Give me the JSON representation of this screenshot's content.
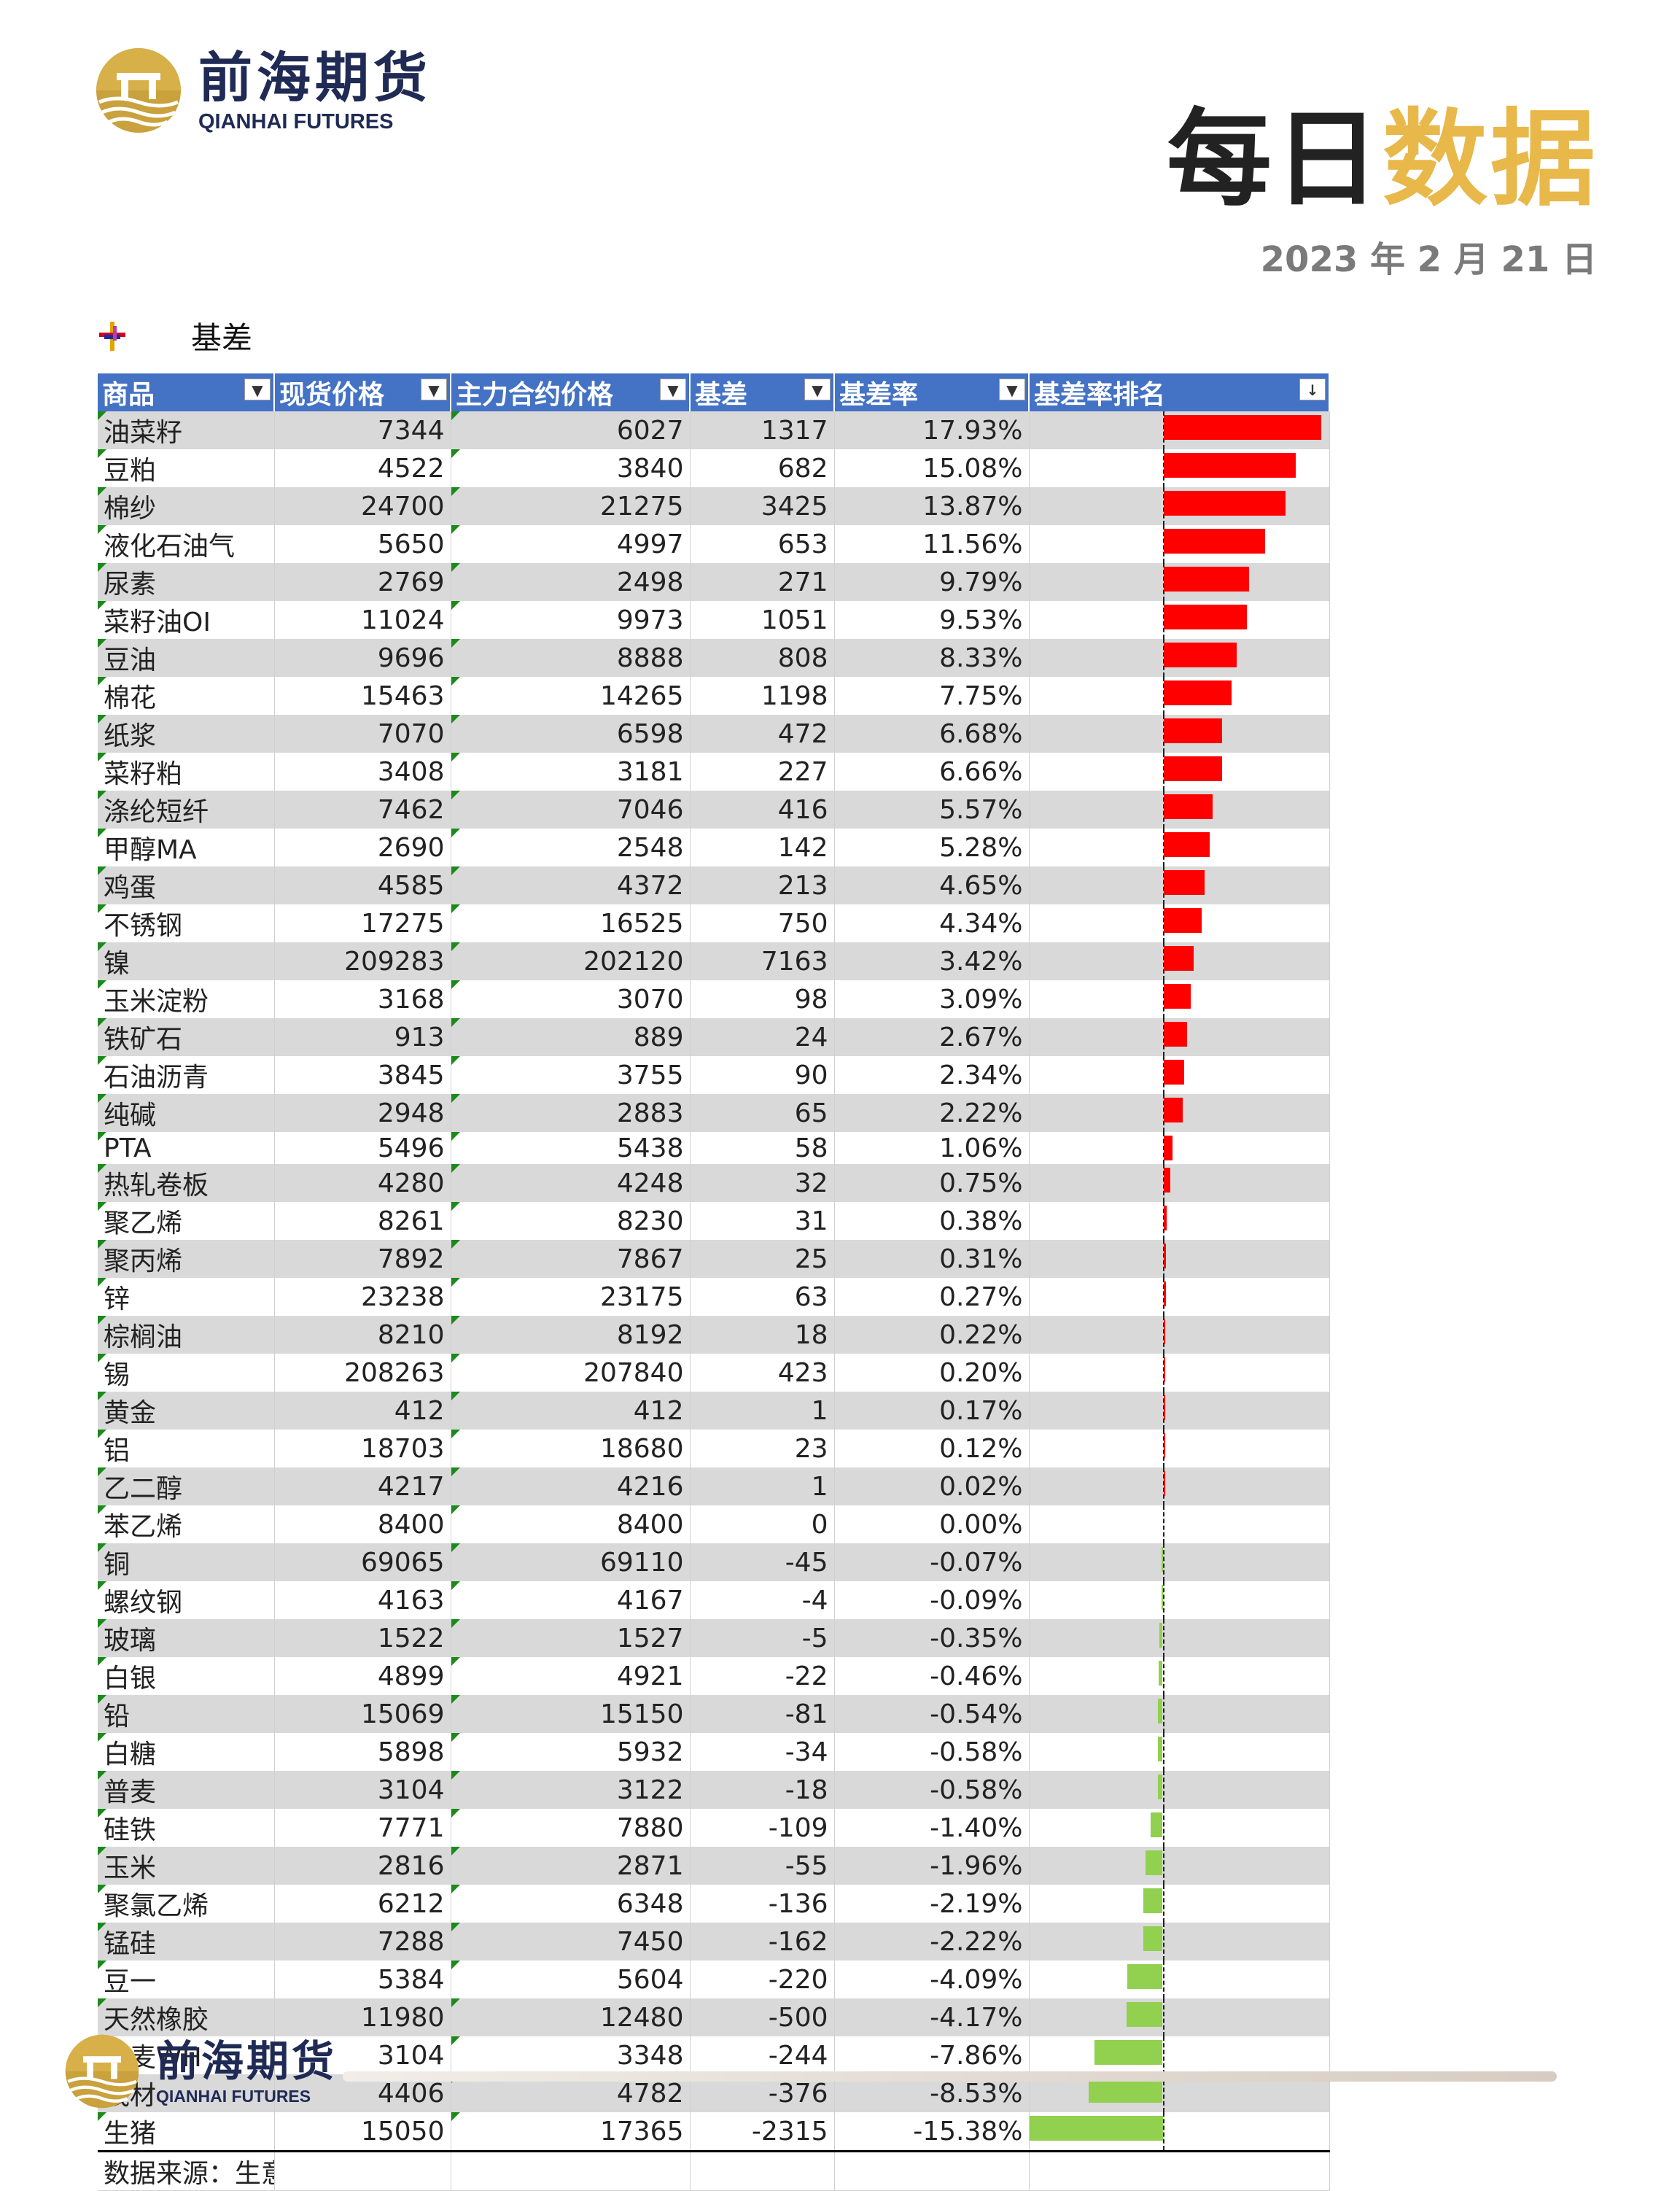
{
  "header": {
    "logo_cn": "前海期货",
    "logo_en": "QIANHAI FUTURES",
    "title_part1": "每日",
    "title_part2": "数据",
    "date": "2023 年 2 月 21 日"
  },
  "section": {
    "title": "基差"
  },
  "table": {
    "columns": [
      "商品",
      "现货价格",
      "主力合约价格",
      "基差",
      "基差率",
      "基差率排名"
    ],
    "rows": [
      [
        "油菜籽",
        "7344",
        "6027",
        "1317",
        "17.93%"
      ],
      [
        "豆粕",
        "4522",
        "3840",
        "682",
        "15.08%"
      ],
      [
        "棉纱",
        "24700",
        "21275",
        "3425",
        "13.87%"
      ],
      [
        "液化石油气",
        "5650",
        "4997",
        "653",
        "11.56%"
      ],
      [
        "尿素",
        "2769",
        "2498",
        "271",
        "9.79%"
      ],
      [
        "菜籽油OI",
        "11024",
        "9973",
        "1051",
        "9.53%"
      ],
      [
        "豆油",
        "9696",
        "8888",
        "808",
        "8.33%"
      ],
      [
        "棉花",
        "15463",
        "14265",
        "1198",
        "7.75%"
      ],
      [
        "纸浆",
        "7070",
        "6598",
        "472",
        "6.68%"
      ],
      [
        "菜籽粕",
        "3408",
        "3181",
        "227",
        "6.66%"
      ],
      [
        "涤纶短纤",
        "7462",
        "7046",
        "416",
        "5.57%"
      ],
      [
        "甲醇MA",
        "2690",
        "2548",
        "142",
        "5.28%"
      ],
      [
        "鸡蛋",
        "4585",
        "4372",
        "213",
        "4.65%"
      ],
      [
        "不锈钢",
        "17275",
        "16525",
        "750",
        "4.34%"
      ],
      [
        "镍",
        "209283",
        "202120",
        "7163",
        "3.42%"
      ],
      [
        "玉米淀粉",
        "3168",
        "3070",
        "98",
        "3.09%"
      ],
      [
        "铁矿石",
        "913",
        "889",
        "24",
        "2.67%"
      ],
      [
        "石油沥青",
        "3845",
        "3755",
        "90",
        "2.34%"
      ],
      [
        "纯碱",
        "2948",
        "2883",
        "65",
        "2.22%"
      ],
      [
        "PTA",
        "5496",
        "5438",
        "58",
        "1.06%"
      ],
      [
        "热轧卷板",
        "4280",
        "4248",
        "32",
        "0.75%"
      ],
      [
        "聚乙烯",
        "8261",
        "8230",
        "31",
        "0.38%"
      ],
      [
        "聚丙烯",
        "7892",
        "7867",
        "25",
        "0.31%"
      ],
      [
        "锌",
        "23238",
        "23175",
        "63",
        "0.27%"
      ],
      [
        "棕榈油",
        "8210",
        "8192",
        "18",
        "0.22%"
      ],
      [
        "锡",
        "208263",
        "207840",
        "423",
        "0.20%"
      ],
      [
        "黄金",
        "412",
        "412",
        "1",
        "0.17%"
      ],
      [
        "铝",
        "18703",
        "18680",
        "23",
        "0.12%"
      ],
      [
        "乙二醇",
        "4217",
        "4216",
        "1",
        "0.02%"
      ],
      [
        "苯乙烯",
        "8400",
        "8400",
        "0",
        "0.00%"
      ],
      [
        "铜",
        "69065",
        "69110",
        "-45",
        "-0.07%"
      ],
      [
        "螺纹钢",
        "4163",
        "4167",
        "-4",
        "-0.09%"
      ],
      [
        "玻璃",
        "1522",
        "1527",
        "-5",
        "-0.35%"
      ],
      [
        "白银",
        "4899",
        "4921",
        "-22",
        "-0.46%"
      ],
      [
        "铅",
        "15069",
        "15150",
        "-81",
        "-0.54%"
      ],
      [
        "白糖",
        "5898",
        "5932",
        "-34",
        "-0.58%"
      ],
      [
        "普麦",
        "3104",
        "3122",
        "-18",
        "-0.58%"
      ],
      [
        "硅铁",
        "7771",
        "7880",
        "-109",
        "-1.40%"
      ],
      [
        "玉米",
        "2816",
        "2871",
        "-55",
        "-1.96%"
      ],
      [
        "聚氯乙烯",
        "6212",
        "6348",
        "-136",
        "-2.19%"
      ],
      [
        "锰硅",
        "7288",
        "7450",
        "-162",
        "-2.22%"
      ],
      [
        "豆一",
        "5384",
        "5604",
        "-220",
        "-4.09%"
      ],
      [
        "天然橡胶",
        "11980",
        "12480",
        "-500",
        "-4.17%"
      ],
      [
        "强麦WH",
        "3104",
        "3348",
        "-244",
        "-7.86%"
      ],
      [
        "线材",
        "4406",
        "4782",
        "-376",
        "-8.53%"
      ],
      [
        "生猪",
        "15050",
        "17365",
        "-2315",
        "-15.38%"
      ]
    ],
    "rates": [
      17.93,
      15.08,
      13.87,
      11.56,
      9.79,
      9.53,
      8.33,
      7.75,
      6.68,
      6.66,
      5.57,
      5.28,
      4.65,
      4.34,
      3.42,
      3.09,
      2.67,
      2.34,
      2.22,
      1.06,
      0.75,
      0.38,
      0.31,
      0.27,
      0.22,
      0.2,
      0.17,
      0.12,
      0.02,
      0.0,
      -0.07,
      -0.09,
      -0.35,
      -0.46,
      -0.54,
      -0.58,
      -0.58,
      -1.4,
      -1.96,
      -2.19,
      -2.22,
      -4.09,
      -4.17,
      -7.86,
      -8.53,
      -15.38
    ],
    "footer": "数据来源：生意社",
    "bar_colors": {
      "positive": "#ff0000",
      "negative": "#92d050"
    }
  },
  "colors": {
    "header_bg": "#4472c4",
    "accent_gold": "#e8b84a",
    "navy": "#1f2a55"
  }
}
